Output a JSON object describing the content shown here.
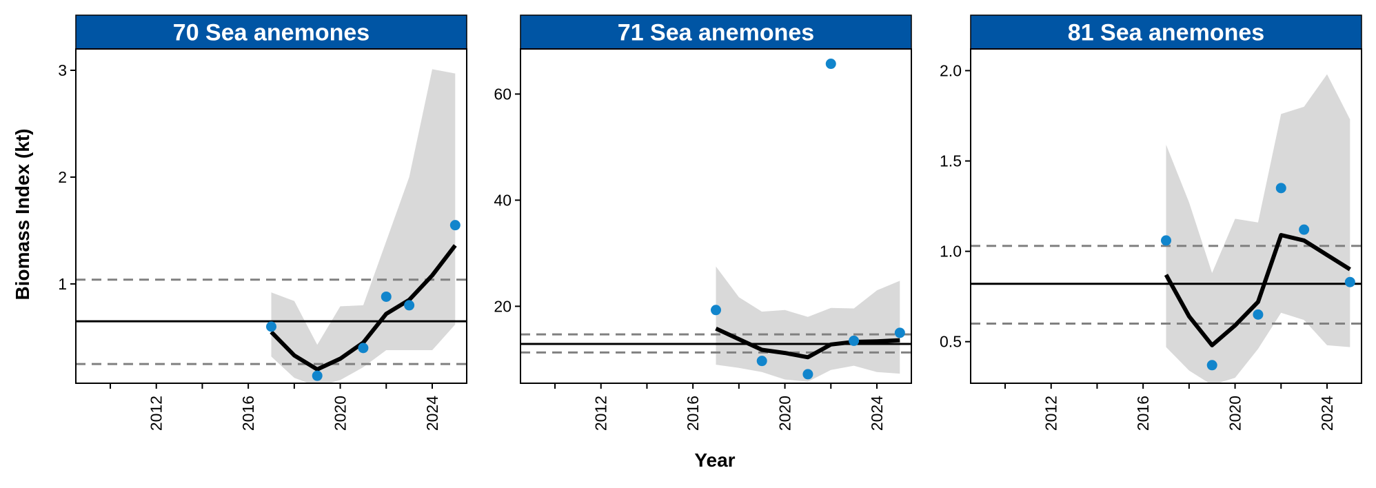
{
  "figure": {
    "ylabel": "Biomass Index (kt)",
    "xlabel": "Year"
  },
  "colors": {
    "strip": "#0055A4",
    "strip_text": "#FFFFFF",
    "point": "#1185CC",
    "ribbon": "#D9D9D9",
    "line": "#000000",
    "dashed": "#808080"
  },
  "chart_data": [
    {
      "type": "line",
      "title": "70 Sea anemones",
      "xlim": [
        2008.5,
        2025.5
      ],
      "ylim": [
        0.07,
        3.2
      ],
      "x_ticks": [
        2010,
        2012,
        2014,
        2016,
        2018,
        2020,
        2022,
        2024
      ],
      "x_tick_labels": [
        "2012",
        "2016",
        "2020",
        "2024"
      ],
      "y_ticks": [
        1,
        2,
        3
      ],
      "grid": false,
      "observed": {
        "x": [
          2017,
          2019,
          2021,
          2022,
          2023,
          2025
        ],
        "y": [
          0.6,
          0.14,
          0.4,
          0.88,
          0.8,
          1.55
        ]
      },
      "smooth": {
        "x": [
          2017,
          2018,
          2019,
          2020,
          2021,
          2022,
          2023,
          2024,
          2025
        ],
        "y": [
          0.55,
          0.33,
          0.2,
          0.3,
          0.45,
          0.72,
          0.85,
          1.08,
          1.36
        ],
        "lower": [
          0.32,
          0.12,
          0.04,
          0.1,
          0.22,
          0.38,
          0.38,
          0.38,
          0.62
        ],
        "upper": [
          0.92,
          0.84,
          0.43,
          0.79,
          0.8,
          1.4,
          2.0,
          3.01,
          2.97
        ]
      },
      "hline_mean": 0.65,
      "hline_bounds": [
        0.25,
        1.04
      ]
    },
    {
      "type": "line",
      "title": "71 Sea anemones",
      "xlim": [
        2008.5,
        2025.5
      ],
      "ylim": [
        5.5,
        68.5
      ],
      "x_ticks": [
        2010,
        2012,
        2014,
        2016,
        2018,
        2020,
        2022,
        2024
      ],
      "x_tick_labels": [
        "2012",
        "2016",
        "2020",
        "2024"
      ],
      "y_ticks": [
        20,
        40,
        60
      ],
      "grid": false,
      "observed": {
        "x": [
          2017,
          2019,
          2021,
          2022,
          2023,
          2025
        ],
        "y": [
          19.3,
          9.7,
          7.2,
          65.7,
          13.5,
          15
        ]
      },
      "smooth": {
        "x": [
          2017,
          2018,
          2019,
          2020,
          2021,
          2022,
          2023,
          2024,
          2025
        ],
        "y": [
          15.8,
          13.8,
          11.8,
          11.2,
          10.4,
          12.8,
          13.3,
          13.4,
          13.6
        ],
        "lower": [
          9.0,
          8.4,
          7.6,
          6.2,
          5.8,
          8.0,
          8.8,
          7.6,
          7.3
        ],
        "upper": [
          27.5,
          21.7,
          19.0,
          19.3,
          18.0,
          19.7,
          19.6,
          23.0,
          24.8
        ]
      },
      "hline_mean": 12.9,
      "hline_bounds": [
        11.3,
        14.7
      ]
    },
    {
      "type": "line",
      "title": "81 Sea anemones",
      "xlim": [
        2008.5,
        2025.5
      ],
      "ylim": [
        0.27,
        2.12
      ],
      "x_ticks": [
        2010,
        2012,
        2014,
        2016,
        2018,
        2020,
        2022,
        2024
      ],
      "x_tick_labels": [
        "2012",
        "2016",
        "2020",
        "2024"
      ],
      "y_ticks": [
        0.5,
        1.0,
        1.5,
        2.0
      ],
      "y_tick_labels": [
        "0.5",
        "1.0",
        "1.5",
        "2.0"
      ],
      "grid": false,
      "observed": {
        "x": [
          2017,
          2019,
          2021,
          2022,
          2023,
          2025
        ],
        "y": [
          1.06,
          0.37,
          0.65,
          1.35,
          1.12,
          0.83
        ]
      },
      "smooth": {
        "x": [
          2017,
          2018,
          2019,
          2020,
          2021,
          2022,
          2023,
          2024,
          2025
        ],
        "y": [
          0.87,
          0.64,
          0.48,
          0.59,
          0.72,
          1.09,
          1.06,
          0.98,
          0.9
        ],
        "lower": [
          0.47,
          0.34,
          0.26,
          0.3,
          0.46,
          0.66,
          0.62,
          0.48,
          0.47
        ],
        "upper": [
          1.59,
          1.27,
          0.88,
          1.18,
          1.16,
          1.76,
          1.8,
          1.98,
          1.73
        ]
      },
      "hline_mean": 0.82,
      "hline_bounds": [
        0.6,
        1.03
      ]
    }
  ]
}
